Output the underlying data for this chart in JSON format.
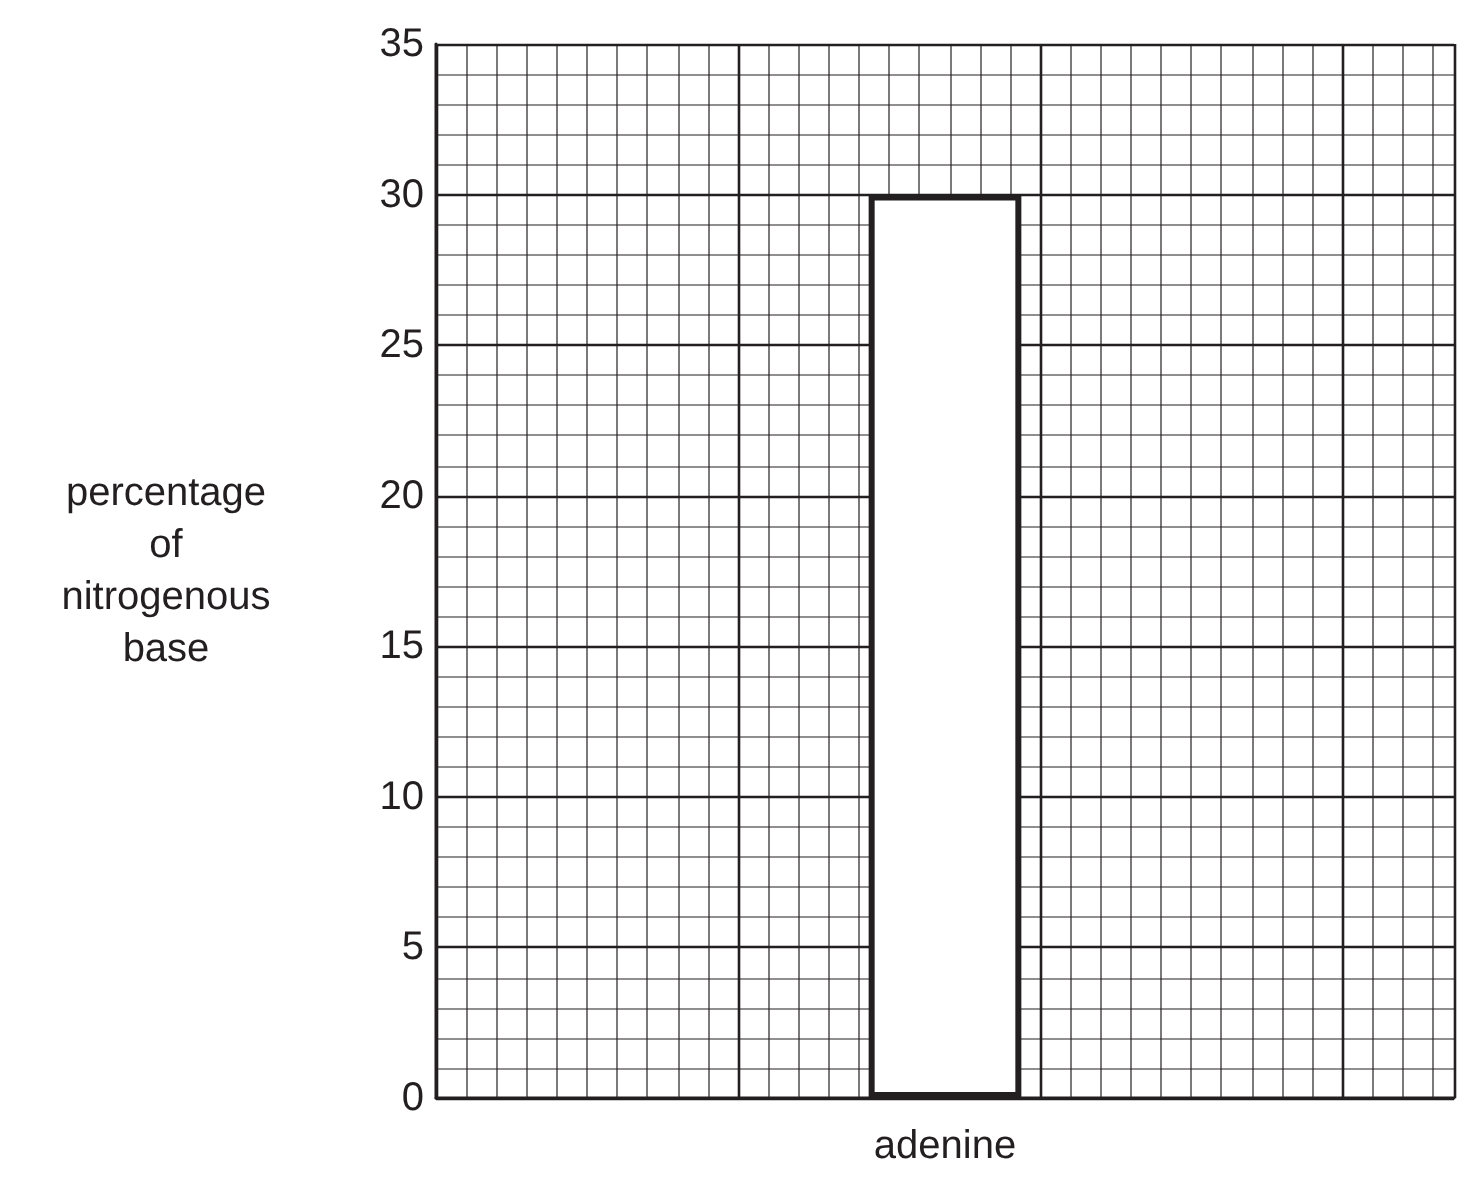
{
  "chart_data": {
    "type": "bar",
    "ylabel": "percentage of nitrogenous base",
    "categories": [
      null,
      "adenine",
      null
    ],
    "values": [
      null,
      30,
      null
    ],
    "color": "#ffffff",
    "ylim": [
      0,
      35
    ],
    "yticks": [
      0,
      5,
      10,
      15,
      20,
      25,
      30,
      35
    ],
    "grid": true
  }
}
